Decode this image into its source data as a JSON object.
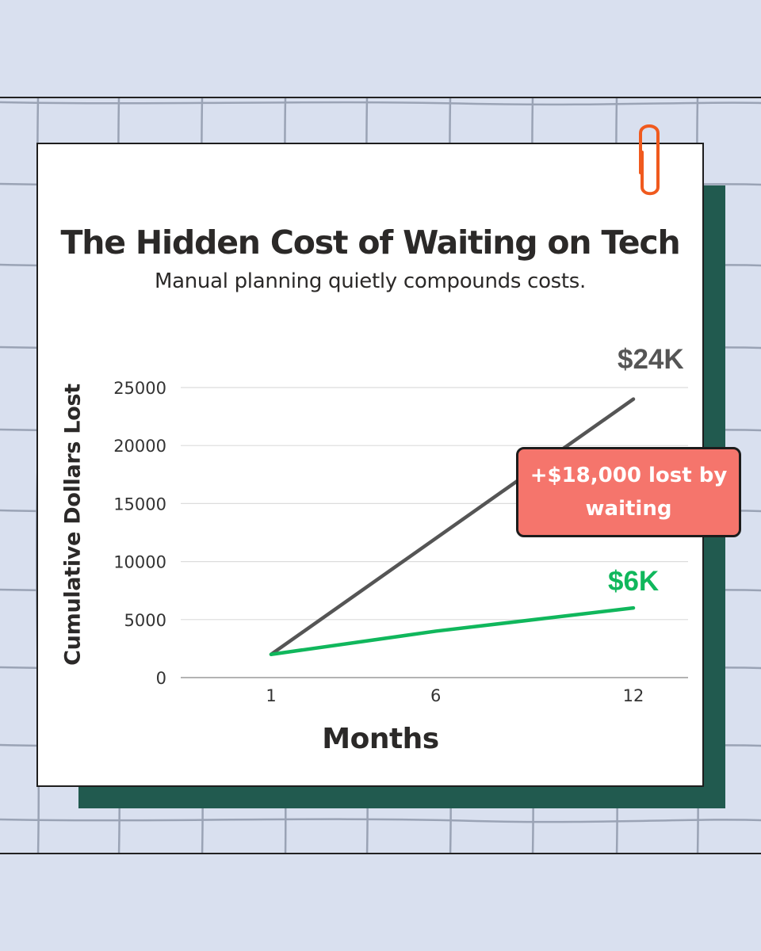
{
  "chart_data": {
    "type": "line",
    "title": "The Hidden Cost of Waiting on Tech",
    "subtitle": "Manual planning quietly compounds costs.",
    "xlabel": "Months",
    "ylabel": "Cumulative Dollars Lost",
    "x_ticks": [
      "1",
      "6",
      "12"
    ],
    "y_ticks": [
      "0",
      "5000",
      "10000",
      "15000",
      "20000",
      "25000"
    ],
    "xlim": [
      1,
      12
    ],
    "ylim": [
      0,
      25000
    ],
    "grid": "horizontal",
    "legend": "none",
    "series": [
      {
        "x": [
          1,
          6,
          12
        ],
        "values": [
          2000,
          12000,
          24000
        ],
        "color": "#555555",
        "end_label": "$24K"
      },
      {
        "x": [
          1,
          6,
          12
        ],
        "values": [
          2000,
          4000,
          6000
        ],
        "color": "#10b75c",
        "end_label": "$6K"
      }
    ],
    "annotations": [
      {
        "text": "+$18,000 lost by waiting",
        "color": "#f5756c"
      }
    ]
  },
  "colors": {
    "background": "#d9e0ef",
    "card": "#ffffff",
    "shadow_card": "#215a4f",
    "paperclip": "#f05a1e",
    "text": "#2b2928"
  },
  "icons": {
    "paperclip": "paperclip-icon"
  }
}
